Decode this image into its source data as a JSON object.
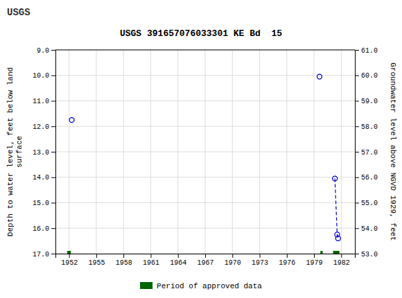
{
  "chart_data": {
    "type": "scatter",
    "title": "USGS 391657076033301 KE Bd  15",
    "annotations": [
      "USGS"
    ],
    "y_label": "Depth to water level, feet below land\nsurface",
    "y2_label": "Groundwater level above NGVD 1929, feet",
    "xlim": [
      1950.5,
      1983.5
    ],
    "xticks": [
      1952,
      1955,
      1958,
      1961,
      1964,
      1967,
      1970,
      1973,
      1976,
      1979,
      1982
    ],
    "ylim": [
      17.0,
      9.0
    ],
    "yticks": [
      {
        "value": 9.0,
        "label": "9.0"
      },
      {
        "value": 10.0,
        "label": "10.0"
      },
      {
        "value": 11.0,
        "label": "11.0"
      },
      {
        "value": 12.0,
        "label": "12.0"
      },
      {
        "value": 13.0,
        "label": "13.0"
      },
      {
        "value": 14.0,
        "label": "14.0"
      },
      {
        "value": 15.0,
        "label": "15.0"
      },
      {
        "value": 16.0,
        "label": "16.0"
      },
      {
        "value": 17.0,
        "label": "17.0"
      }
    ],
    "y2lim": [
      53.0,
      61.0
    ],
    "y2ticks": [
      {
        "value": 61.0,
        "label": "61.0"
      },
      {
        "value": 60.0,
        "label": "60.0"
      },
      {
        "value": 59.0,
        "label": "59.0"
      },
      {
        "value": 58.0,
        "label": "58.0"
      },
      {
        "value": 57.0,
        "label": "57.0"
      },
      {
        "value": 56.0,
        "label": "56.0"
      },
      {
        "value": 55.0,
        "label": "55.0"
      },
      {
        "value": 54.0,
        "label": "54.0"
      },
      {
        "value": 53.0,
        "label": "53.0"
      }
    ],
    "grid": true,
    "legend": "bottom",
    "series": [
      {
        "type": "scatter",
        "marker": "circle",
        "color": "#0000cc",
        "x": [
          1952.3,
          1979.6,
          1981.3,
          1981.55,
          1981.65
        ],
        "values": [
          11.75,
          10.05,
          14.05,
          16.25,
          16.4
        ]
      },
      {
        "type": "line",
        "line_style": "dashed",
        "color": "#0000cc",
        "x": [
          1981.3,
          1981.55,
          1981.65
        ],
        "values": [
          14.05,
          16.25,
          16.4
        ]
      },
      {
        "name": "Period of approved data",
        "type": "interval",
        "color": "#006400",
        "x": [
          1951.8,
          1979.7,
          1981.1
        ],
        "widths": [
          0.4,
          0.25,
          0.7
        ],
        "values": [
          17.0,
          17.0,
          17.0
        ]
      }
    ]
  }
}
